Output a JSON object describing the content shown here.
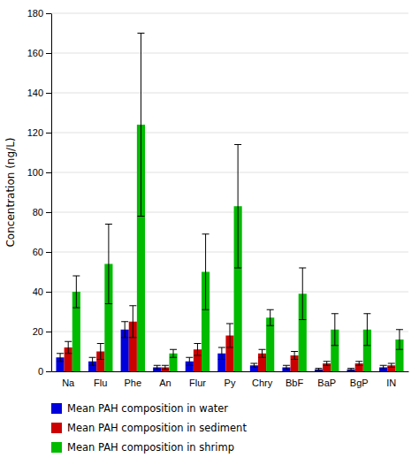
{
  "chart_data": {
    "type": "bar",
    "ylabel": "Concentration (ng/L)",
    "categories": [
      "Na",
      "Flu",
      "Phe",
      "An",
      "Flur",
      "Py",
      "Chry",
      "BbF",
      "BaP",
      "BgP",
      "IN"
    ],
    "series": [
      {
        "name": "Mean PAH composition in water",
        "color": "#0000dd",
        "values": [
          7,
          5,
          21,
          2,
          5,
          9,
          3,
          2,
          1,
          1,
          2
        ],
        "errors": [
          2,
          2,
          4,
          1,
          2,
          3,
          1,
          1,
          0.5,
          0.5,
          1
        ]
      },
      {
        "name": "Mean PAH composition in sediment",
        "color": "#cc0000",
        "values": [
          12,
          10,
          25,
          2,
          11,
          18,
          9,
          8,
          4,
          4,
          3
        ],
        "errors": [
          3,
          4,
          8,
          1,
          3,
          6,
          2,
          2,
          1,
          1,
          1
        ]
      },
      {
        "name": "Mean PAH composition in shrimp",
        "color": "#00bb00",
        "values": [
          40,
          54,
          124,
          9,
          50,
          83,
          27,
          39,
          21,
          21,
          16
        ],
        "errors": [
          8,
          20,
          46,
          2,
          19,
          31,
          4,
          13,
          8,
          8,
          5
        ]
      }
    ],
    "ylim": [
      0,
      180
    ],
    "yticks": [
      0,
      20,
      40,
      60,
      80,
      100,
      120,
      140,
      160,
      180
    ],
    "grid": true,
    "legend": "bottom"
  }
}
